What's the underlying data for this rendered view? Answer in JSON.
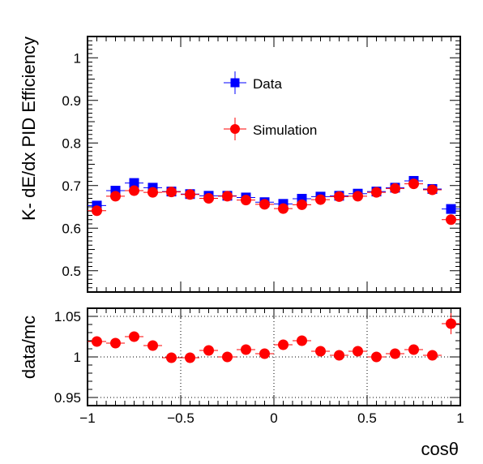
{
  "chart_data": [
    {
      "type": "scatter",
      "title": "",
      "xlabel": "",
      "ylabel": "K- dE/dx PID Efficiency",
      "xlim": [
        -1,
        1
      ],
      "ylim": [
        0.45,
        1.05
      ],
      "y_ticks": [
        "0.5",
        "0.6",
        "0.7",
        "0.8",
        "0.9",
        "1"
      ],
      "legend_position": "top-center",
      "grid": false,
      "x": [
        -0.95,
        -0.85,
        -0.75,
        -0.65,
        -0.55,
        -0.45,
        -0.35,
        -0.25,
        -0.15,
        -0.05,
        0.05,
        0.15,
        0.25,
        0.35,
        0.45,
        0.55,
        0.65,
        0.75,
        0.85,
        0.95
      ],
      "series": [
        {
          "name": "Data",
          "color": "#0000ff",
          "marker": "square",
          "values": [
            0.653,
            0.688,
            0.706,
            0.695,
            0.686,
            0.68,
            0.676,
            0.676,
            0.672,
            0.661,
            0.657,
            0.669,
            0.674,
            0.676,
            0.681,
            0.686,
            0.695,
            0.711,
            0.692,
            0.645
          ]
        },
        {
          "name": "Simulation",
          "color": "#ff0000",
          "marker": "circle",
          "values": [
            0.641,
            0.675,
            0.688,
            0.684,
            0.685,
            0.679,
            0.67,
            0.675,
            0.666,
            0.656,
            0.646,
            0.655,
            0.667,
            0.674,
            0.675,
            0.684,
            0.693,
            0.704,
            0.69,
            0.62
          ]
        }
      ]
    },
    {
      "type": "scatter",
      "title": "",
      "xlabel": "cosθ",
      "ylabel": "data/mc",
      "xlim": [
        -1,
        1
      ],
      "ylim": [
        0.94,
        1.06
      ],
      "x_ticks": [
        "−1",
        "−0.5",
        "0",
        "0.5",
        "1"
      ],
      "y_ticks": [
        "0.95",
        "1",
        "1.05"
      ],
      "grid": true,
      "x": [
        -0.95,
        -0.85,
        -0.75,
        -0.65,
        -0.55,
        -0.45,
        -0.35,
        -0.25,
        -0.15,
        -0.05,
        0.05,
        0.15,
        0.25,
        0.35,
        0.45,
        0.55,
        0.65,
        0.75,
        0.85,
        0.95
      ],
      "series": [
        {
          "color": "#ff0000",
          "marker": "circle",
          "values": [
            1.019,
            1.017,
            1.025,
            1.014,
            0.999,
            0.999,
            1.008,
            1.0,
            1.009,
            1.004,
            1.015,
            1.02,
            1.007,
            1.002,
            1.007,
            1.0,
            1.004,
            1.009,
            1.002,
            1.041
          ]
        }
      ]
    }
  ]
}
